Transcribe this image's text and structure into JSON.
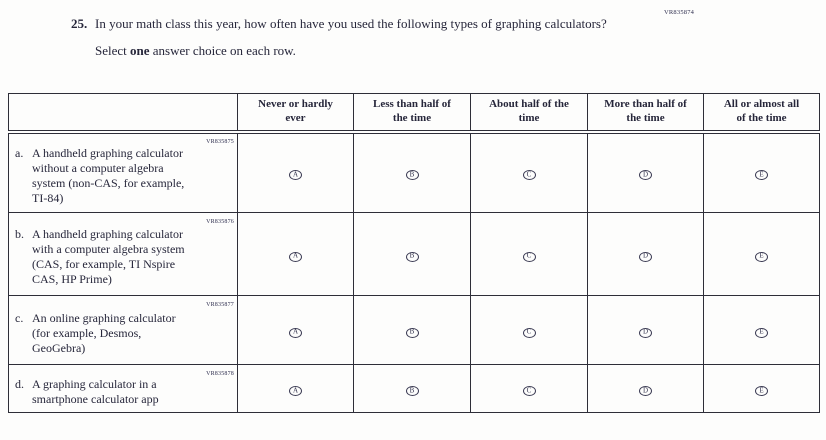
{
  "page": {
    "code_top_right": "VR835874"
  },
  "question": {
    "number": "25.",
    "text": "In your math class this year, how often have you used the following types of graphing calculators?",
    "instruction_prefix": "Select ",
    "instruction_bold": "one",
    "instruction_suffix": " answer choice on each row."
  },
  "table": {
    "column_headers": [
      [
        "Never or hardly",
        "ever"
      ],
      [
        "Less than half of",
        "the time"
      ],
      [
        "About half of the",
        "time"
      ],
      [
        "More than half of",
        "the time"
      ],
      [
        "All or almost all",
        "of the time"
      ]
    ],
    "bubble_letters": [
      "A",
      "B",
      "C",
      "D",
      "E"
    ],
    "rows": [
      {
        "code": "VR835875",
        "prefix": "a.",
        "lines": [
          "A handheld graphing calculator",
          "without a computer algebra",
          "system (non-CAS, for example,",
          "TI-84)"
        ]
      },
      {
        "code": "VR835876",
        "prefix": "b.",
        "lines": [
          "A handheld graphing calculator",
          "with a computer algebra system",
          "(CAS, for example, TI Nspire",
          "CAS, HP Prime)"
        ]
      },
      {
        "code": "VR835877",
        "prefix": "c.",
        "lines": [
          "An online graphing calculator",
          "(for example, Desmos,",
          "GeoGebra)"
        ]
      },
      {
        "code": "VR835878",
        "prefix": "d.",
        "lines": [
          "A graphing calculator in a",
          "smartphone calculator app"
        ]
      }
    ]
  },
  "colors": {
    "text": "#26263a",
    "border": "#2e2e38"
  }
}
